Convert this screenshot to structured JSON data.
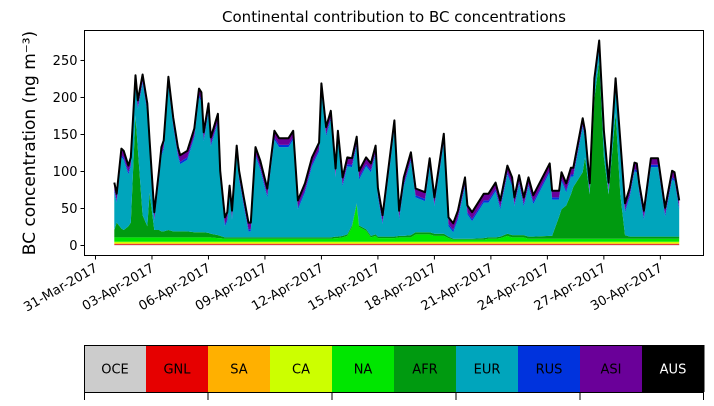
{
  "chart_data": {
    "type": "area",
    "stacked": true,
    "title": "Continental contribution to BC concentrations",
    "ylabel": "BC concentration (ng m⁻³)",
    "xlabel": "",
    "xlim": [
      "2017-03-30 10:00",
      "2017-05-02 07:00"
    ],
    "ylim": [
      -13.5,
      290.5
    ],
    "yticks": [
      0,
      50,
      100,
      150,
      200,
      250
    ],
    "xticks": [
      {
        "date": "2017-03-31",
        "label": "31-Mar-2017"
      },
      {
        "date": "2017-04-03",
        "label": "03-Apr-2017"
      },
      {
        "date": "2017-04-06",
        "label": "06-Apr-2017"
      },
      {
        "date": "2017-04-09",
        "label": "09-Apr-2017"
      },
      {
        "date": "2017-04-12",
        "label": "12-Apr-2017"
      },
      {
        "date": "2017-04-15",
        "label": "15-Apr-2017"
      },
      {
        "date": "2017-04-18",
        "label": "18-Apr-2017"
      },
      {
        "date": "2017-04-21",
        "label": "21-Apr-2017"
      },
      {
        "date": "2017-04-24",
        "label": "24-Apr-2017"
      },
      {
        "date": "2017-04-27",
        "label": "27-Apr-2017"
      },
      {
        "date": "2017-04-30",
        "label": "30-Apr-2017"
      }
    ],
    "grid": false,
    "legend_placement": "bottom colorbar",
    "total_line_color": "#000000",
    "x": [
      "2017-04-01 00:00",
      "2017-04-01 03:00",
      "2017-04-01 09:00",
      "2017-04-01 12:00",
      "2017-04-01 18:00",
      "2017-04-01 21:00",
      "2017-04-02 03:00",
      "2017-04-02 06:00",
      "2017-04-02 12:00",
      "2017-04-02 18:00",
      "2017-04-02 21:00",
      "2017-04-03 03:00",
      "2017-04-03 09:00",
      "2017-04-03 12:00",
      "2017-04-03 15:00",
      "2017-04-03 21:00",
      "2017-04-04 03:00",
      "2017-04-04 09:00",
      "2017-04-04 12:00",
      "2017-04-04 21:00",
      "2017-04-05 06:00",
      "2017-04-05 12:00",
      "2017-04-05 15:00",
      "2017-04-05 18:00",
      "2017-04-06 00:00",
      "2017-04-06 03:00",
      "2017-04-06 12:00",
      "2017-04-06 15:00",
      "2017-04-06 21:00",
      "2017-04-07 00:00",
      "2017-04-07 03:00",
      "2017-04-07 06:00",
      "2017-04-07 12:00",
      "2017-04-07 15:00",
      "2017-04-07 21:00",
      "2017-04-08 03:00",
      "2017-04-08 06:00",
      "2017-04-08 12:00",
      "2017-04-08 18:00",
      "2017-04-09 03:00",
      "2017-04-09 12:00",
      "2017-04-09 18:00",
      "2017-04-10 06:00",
      "2017-04-10 12:00",
      "2017-04-10 18:00",
      "2017-04-11 03:00",
      "2017-04-11 12:00",
      "2017-04-11 21:00",
      "2017-04-12 00:00",
      "2017-04-12 06:00",
      "2017-04-12 12:00",
      "2017-04-12 18:00",
      "2017-04-12 21:00",
      "2017-04-13 03:00",
      "2017-04-13 09:00",
      "2017-04-13 15:00",
      "2017-04-13 21:00",
      "2017-04-14 00:00",
      "2017-04-14 09:00",
      "2017-04-14 15:00",
      "2017-04-14 21:00",
      "2017-04-15 00:00",
      "2017-04-15 06:00",
      "2017-04-15 12:00",
      "2017-04-15 21:00",
      "2017-04-16 03:00",
      "2017-04-16 09:00",
      "2017-04-16 18:00",
      "2017-04-17 00:00",
      "2017-04-17 12:00",
      "2017-04-17 18:00",
      "2017-04-18 00:00",
      "2017-04-18 12:00",
      "2017-04-18 18:00",
      "2017-04-19 00:00",
      "2017-04-19 06:00",
      "2017-04-19 15:00",
      "2017-04-19 18:00",
      "2017-04-20 00:00",
      "2017-04-20 15:00",
      "2017-04-20 21:00",
      "2017-04-21 06:00",
      "2017-04-21 12:00",
      "2017-04-21 21:00",
      "2017-04-22 03:00",
      "2017-04-22 06:00",
      "2017-04-22 12:00",
      "2017-04-22 18:00",
      "2017-04-23 00:00",
      "2017-04-23 06:00",
      "2017-04-24 03:00",
      "2017-04-24 06:00",
      "2017-04-24 15:00",
      "2017-04-24 18:00",
      "2017-04-25 00:00",
      "2017-04-25 06:00",
      "2017-04-25 09:00",
      "2017-04-25 21:00",
      "2017-04-26 00:00",
      "2017-04-26 06:00",
      "2017-04-26 12:00",
      "2017-04-26 18:00",
      "2017-04-27 00:00",
      "2017-04-27 06:00",
      "2017-04-27 15:00",
      "2017-04-27 21:00",
      "2017-04-28 03:00",
      "2017-04-28 09:00",
      "2017-04-28 15:00",
      "2017-04-28 18:00",
      "2017-04-28 21:00",
      "2017-04-29 03:00",
      "2017-04-29 12:00",
      "2017-04-29 21:00",
      "2017-04-30 06:00",
      "2017-04-30 15:00",
      "2017-04-30 18:00",
      "2017-05-01 00:00"
    ],
    "series": [
      {
        "name": "OCE",
        "color": "#cccccc",
        "values": 1
      },
      {
        "name": "GNL",
        "color": "#e60000",
        "values": 1
      },
      {
        "name": "SA",
        "color": "#ffb000",
        "values": 1
      },
      {
        "name": "CA",
        "color": "#ccff00",
        "values": 2
      },
      {
        "name": "NA",
        "color": "#00e600",
        "values": [
          6,
          6,
          6,
          6,
          6,
          6,
          6,
          6,
          6,
          6,
          6,
          6,
          6,
          6,
          6,
          6,
          6,
          6,
          6,
          6,
          6,
          6,
          6,
          6,
          6,
          6,
          5,
          5,
          4,
          4,
          4,
          4,
          4,
          4,
          4,
          4,
          4,
          4,
          4,
          4,
          4,
          4,
          4,
          4,
          4,
          4,
          4,
          4,
          4,
          4,
          4,
          5,
          5,
          6,
          8,
          20,
          50,
          20,
          15,
          6,
          8,
          5,
          5,
          5,
          5,
          6,
          6,
          6,
          10,
          10,
          10,
          8,
          8,
          5,
          3,
          3,
          3,
          3,
          3,
          3,
          4,
          4,
          5,
          8,
          6,
          6,
          6,
          6,
          4,
          4,
          4,
          4,
          4,
          4,
          4,
          4,
          4,
          4,
          4,
          4,
          4,
          4,
          4,
          4,
          4,
          4,
          4,
          4,
          4,
          4,
          4,
          4,
          4,
          4,
          4,
          4,
          4,
          4
        ]
      },
      {
        "name": "AFR",
        "color": "#009a10",
        "values": [
          10,
          20,
          12,
          10,
          15,
          20,
          165,
          120,
          30,
          15,
          60,
          10,
          10,
          8,
          8,
          10,
          8,
          8,
          8,
          8,
          7,
          7,
          7,
          7,
          6,
          5,
          4,
          3,
          2,
          2,
          2,
          2,
          2,
          2,
          2,
          2,
          2,
          2,
          2,
          2,
          2,
          2,
          2,
          2,
          2,
          2,
          2,
          2,
          2,
          2,
          2,
          2,
          2,
          2,
          2,
          2,
          2,
          2,
          2,
          2,
          2,
          2,
          2,
          2,
          2,
          2,
          2,
          3,
          3,
          3,
          3,
          3,
          3,
          2,
          1,
          1,
          1,
          1,
          1,
          2,
          2,
          2,
          2,
          3,
          3,
          3,
          3,
          3,
          3,
          3,
          4,
          4,
          30,
          40,
          45,
          60,
          70,
          90,
          110,
          60,
          190,
          240,
          110,
          60,
          170,
          60,
          5,
          3,
          3,
          3,
          3,
          3,
          3,
          3,
          3,
          3,
          3,
          3
        ]
      },
      {
        "name": "EUR",
        "color": "#00a5bc",
        "values": [
          52,
          27,
          96,
          95,
          70,
          76,
          42,
          53,
          178,
          154,
          59,
          12,
          68,
          102,
          111,
          195,
          142,
          102,
          91,
          97,
          128,
          182,
          177,
          123,
          163,
          118,
          152,
          76,
          15,
          22,
          58,
          24,
          112,
          78,
          42,
          8,
          8,
          110,
          92,
          54,
          132,
          122,
          122,
          132,
          38,
          61,
          96,
          116,
          196,
          137,
          159,
          80,
          131,
          67,
          92,
          79,
          78,
          62,
          85,
          86,
          108,
          54,
          17,
          68,
          145,
          22,
          67,
          100,
          47,
          42,
          88,
          37,
          123,
          14,
          9,
          26,
          71,
          33,
          24,
          48,
          47,
          62,
          37,
          80,
          66,
          39,
          69,
          39,
          68,
          44,
          86,
          49,
          23,
          38,
          18,
          24,
          14,
          61,
          24,
          3,
          15,
          16,
          24,
          4,
          35,
          61,
          31,
          54,
          88,
          87,
          60,
          23,
          94,
          94,
          27,
          77,
          75,
          37
        ]
      },
      {
        "name": "RUS",
        "color": "#0033dd",
        "values": 3
      },
      {
        "name": "ASI",
        "color": "#6a0099",
        "values": 8
      },
      {
        "name": "AUS",
        "color": "#000000",
        "values": 1
      }
    ]
  }
}
